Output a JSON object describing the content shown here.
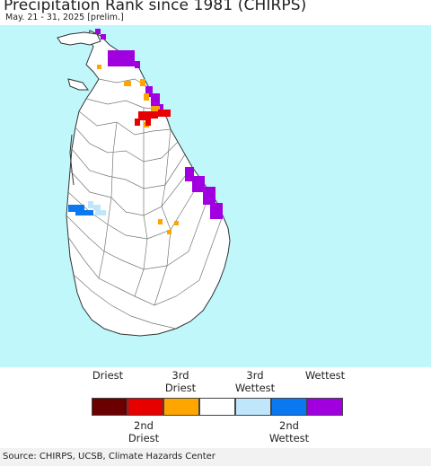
{
  "header": {
    "title": "Precipitation Rank since 1981 (CHIRPS)",
    "subtitle": "May. 21 - 31, 2025 [prelim.]"
  },
  "colors": {
    "ocean": "#bff7fb",
    "land": "#ffffff",
    "border": "#555555",
    "driest": "#6b0000",
    "second_driest": "#e60000",
    "third_driest": "#ffa500",
    "normal": "#ffffff",
    "third_wettest": "#bfe6fb",
    "second_wettest": "#0a78f0",
    "wettest": "#a000e0"
  },
  "legend": {
    "top_labels": [
      {
        "line1": "",
        "line2": "Driest"
      },
      {
        "line1": "3rd",
        "line2": "Driest"
      },
      {
        "line1": "3rd",
        "line2": "Wettest"
      },
      {
        "line1": "",
        "line2": "Wettest"
      }
    ],
    "bottom_labels": [
      {
        "line1": "2nd",
        "line2": "Driest"
      },
      {
        "line1": "2nd",
        "line2": "Wettest"
      }
    ]
  },
  "footer": {
    "source": "Source: CHIRPS, UCSB, Climate Hazards Center"
  }
}
